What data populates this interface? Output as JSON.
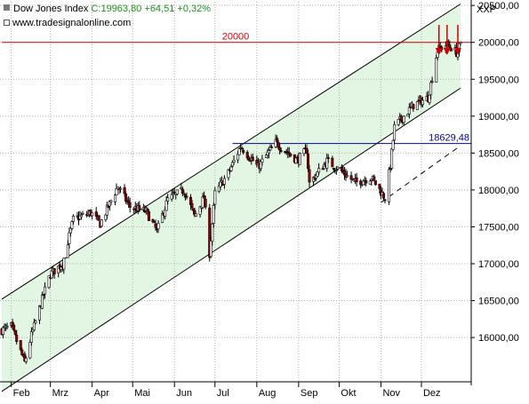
{
  "header": {
    "instrument": "Dow Jones Index",
    "last_value": "C:19963,80 +64,51 +0,32%",
    "source": "www.tradesignalonline.com",
    "symbol": "XXP"
  },
  "colors": {
    "channel_fill": "#e3f5e3",
    "channel_line": "#000000",
    "resistance": "#d00000",
    "support": "#0000aa",
    "arrow": "#cc0000",
    "grid": "#b0b0b0",
    "candle_up": "#ffffff",
    "candle_down": "#9b0000",
    "last_value": "#1c8f1c"
  },
  "chart_data": {
    "type": "candlestick",
    "period": "daily",
    "x_axis": {
      "range": [
        "2016-01-25",
        "2016-12-30"
      ],
      "tick_labels": [
        "Feb",
        "Mrz",
        "Apr",
        "Mai",
        "Jun",
        "Jul",
        "Aug",
        "Sep",
        "Okt",
        "Nov",
        "Dez"
      ],
      "tick_dates": [
        "2016-02-01",
        "2016-03-01",
        "2016-04-01",
        "2016-05-01",
        "2016-06-01",
        "2016-07-01",
        "2016-08-01",
        "2016-09-01",
        "2016-10-01",
        "2016-11-01",
        "2016-12-01"
      ]
    },
    "y_axis": {
      "position": "right",
      "range": [
        15400,
        20550
      ],
      "ticks": [
        16000,
        16500,
        17000,
        17500,
        18000,
        18500,
        19000,
        19500,
        20000,
        20500
      ],
      "tick_labels": [
        "16000,00",
        "16500,00",
        "17000,00",
        "17500,00",
        "18000,00",
        "18500,00",
        "19000,00",
        "19500,00",
        "20000,00",
        "20500,00"
      ]
    },
    "close_series": [
      [
        "2016-01-25",
        16100
      ],
      [
        "2016-02-01",
        16150
      ],
      [
        "2016-02-11",
        15660
      ],
      [
        "2016-02-16",
        16030
      ],
      [
        "2016-02-26",
        16640
      ],
      [
        "2016-03-01",
        16860
      ],
      [
        "2016-03-10",
        17000
      ],
      [
        "2016-03-18",
        17600
      ],
      [
        "2016-03-31",
        17690
      ],
      [
        "2016-04-07",
        17540
      ],
      [
        "2016-04-20",
        18050
      ],
      [
        "2016-04-29",
        17770
      ],
      [
        "2016-05-11",
        17710
      ],
      [
        "2016-05-19",
        17440
      ],
      [
        "2016-05-27",
        17870
      ],
      [
        "2016-06-08",
        18000
      ],
      [
        "2016-06-16",
        17640
      ],
      [
        "2016-06-23",
        17900
      ],
      [
        "2016-06-27",
        17140
      ],
      [
        "2016-07-01",
        17950
      ],
      [
        "2016-07-11",
        18230
      ],
      [
        "2016-07-20",
        18590
      ],
      [
        "2016-08-02",
        18310
      ],
      [
        "2016-08-15",
        18640
      ],
      [
        "2016-08-31",
        18400
      ],
      [
        "2016-09-07",
        18540
      ],
      [
        "2016-09-09",
        18090
      ],
      [
        "2016-09-22",
        18390
      ],
      [
        "2016-10-03",
        18250
      ],
      [
        "2016-10-13",
        18100
      ],
      [
        "2016-10-25",
        18170
      ],
      [
        "2016-11-04",
        17890
      ],
      [
        "2016-11-08",
        18330
      ],
      [
        "2016-11-11",
        18850
      ],
      [
        "2016-11-25",
        19150
      ],
      [
        "2016-12-06",
        19250
      ],
      [
        "2016-12-13",
        19900
      ],
      [
        "2016-12-20",
        19970
      ],
      [
        "2016-12-23",
        19930
      ],
      [
        "2016-12-27",
        19860
      ],
      [
        "2016-12-30",
        19963.8
      ]
    ],
    "channel": {
      "upper": [
        [
          "2016-01-25",
          16520
        ],
        [
          "2016-12-30",
          20520
        ]
      ],
      "lower": [
        [
          "2016-01-25",
          15270
        ],
        [
          "2016-12-30",
          19380
        ]
      ],
      "lower_extension_dashed": [
        [
          "2016-11-01",
          17830
        ],
        [
          "2016-12-30",
          18600
        ]
      ]
    },
    "horizontal_lines": [
      {
        "value": 20000,
        "label": "20000",
        "from": "2016-01-25"
      },
      {
        "value": 18629.48,
        "label": "18629,48",
        "from": "2016-07-14"
      }
    ],
    "arrows": [
      "2016-12-14",
      "2016-12-20",
      "2016-12-28"
    ],
    "grid": true
  }
}
